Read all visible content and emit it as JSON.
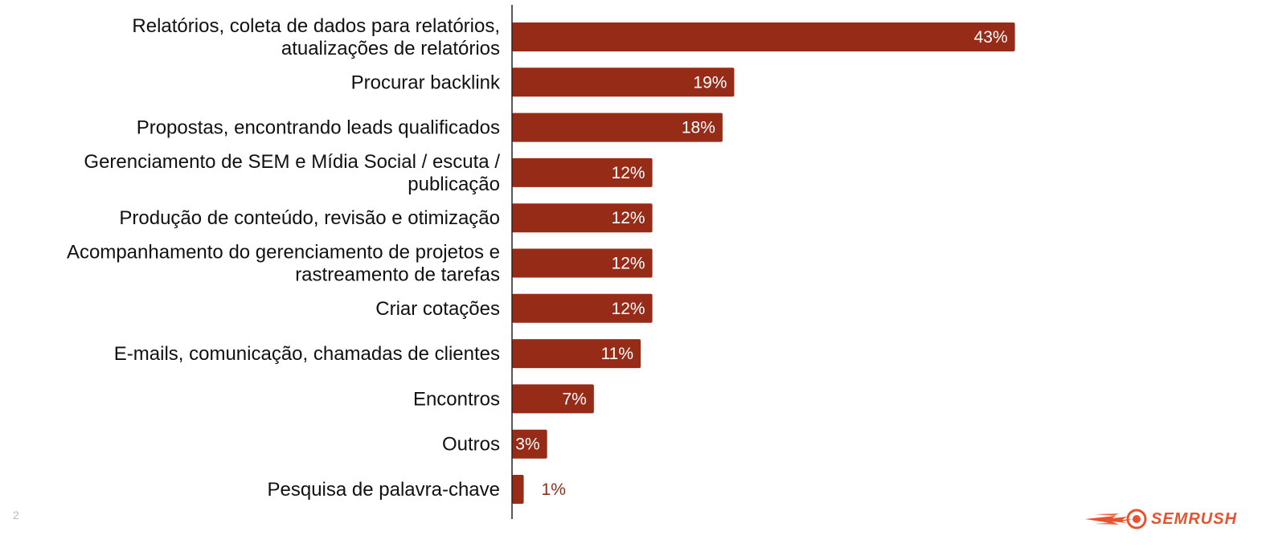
{
  "page_number": "2",
  "brand": {
    "logo_text": "SEMRUSH",
    "icon": "semrush-flame-logo-icon",
    "color": "#E8532F"
  },
  "colors": {
    "bar": "#962B17",
    "axis": "#222222",
    "label_inside": "#FFFFFF",
    "label_outside": "#962B17"
  },
  "chart_data": {
    "type": "bar",
    "orientation": "horizontal",
    "title": "",
    "xlabel": "",
    "ylabel": "",
    "grid": false,
    "legend": "none",
    "xlim": [
      0,
      100
    ],
    "categories": [
      [
        "Relatórios, coleta de dados para relatórios,",
        "atualizações de relatórios"
      ],
      [
        "Procurar backlink"
      ],
      [
        "Propostas, encontrando leads qualificados"
      ],
      [
        "Gerenciamento de SEM e Mídia Social / escuta /",
        "publicação"
      ],
      [
        "Produção de conteúdo, revisão e otimização"
      ],
      [
        "Acompanhamento do gerenciamento de projetos e",
        "rastreamento de tarefas"
      ],
      [
        "Criar cotações"
      ],
      [
        "E-mails, comunicação, chamadas de clientes"
      ],
      [
        "Encontros"
      ],
      [
        "Outros"
      ],
      [
        "Pesquisa de palavra-chave"
      ]
    ],
    "values": [
      43,
      19,
      18,
      12,
      12,
      12,
      12,
      11,
      7,
      3,
      1
    ],
    "value_labels": [
      "43%",
      "19%",
      "18%",
      "12%",
      "12%",
      "12%",
      "12%",
      "11%",
      "7%",
      "3%",
      "1%"
    ]
  }
}
